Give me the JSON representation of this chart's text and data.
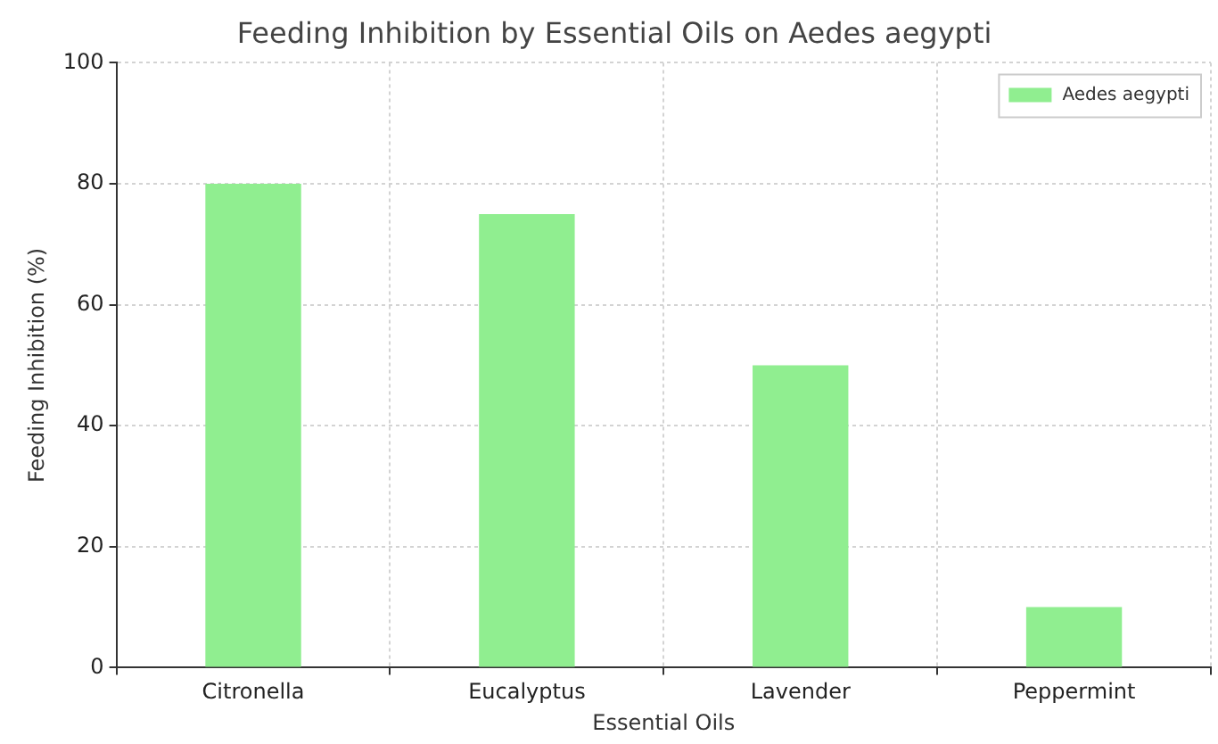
{
  "chart_data": {
    "type": "bar",
    "title": "Feeding Inhibition by Essential Oils on Aedes aegypti",
    "xlabel": "Essential Oils",
    "ylabel": "Feeding Inhibition (%)",
    "categories": [
      "Citronella",
      "Eucalyptus",
      "Lavender",
      "Peppermint"
    ],
    "series": [
      {
        "name": "Aedes aegypti",
        "color": "#90ee90",
        "values": [
          80,
          75,
          50,
          10
        ]
      }
    ],
    "ylim": [
      0,
      100
    ],
    "yticks": [
      0,
      20,
      40,
      60,
      80,
      100
    ],
    "grid": true,
    "legend": "top right"
  }
}
